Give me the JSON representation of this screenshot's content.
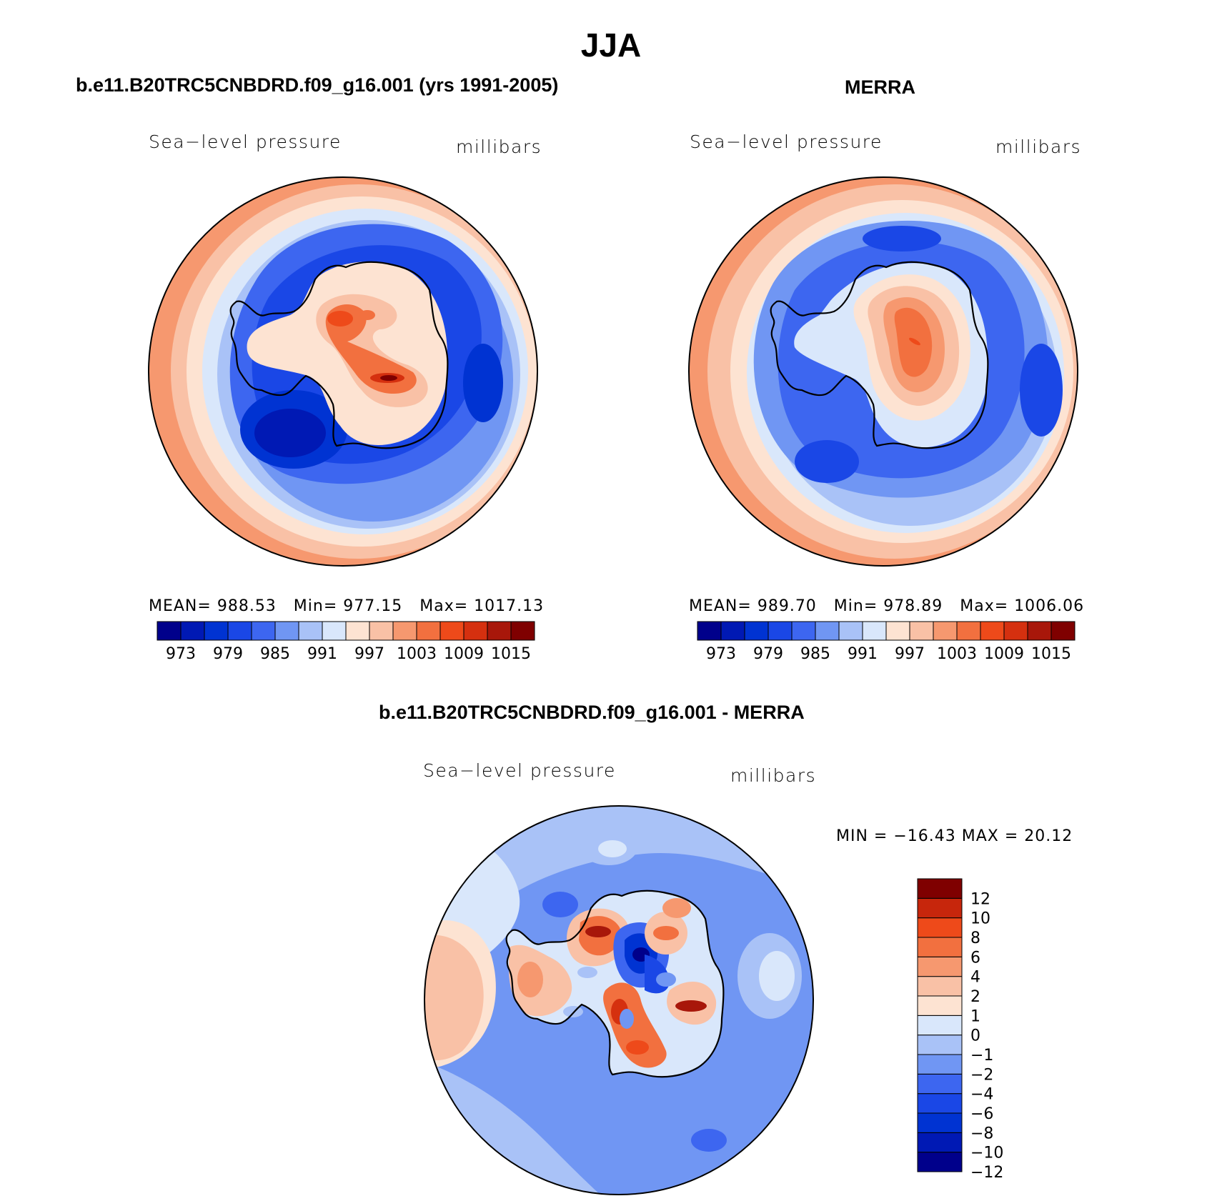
{
  "figure": {
    "title": "JJA",
    "colors": {
      "sequential": [
        "#00008b",
        "#0019b4",
        "#0033d2",
        "#1a47e6",
        "#3d66f0",
        "#7096f3",
        "#a9c2f7",
        "#d9e7fb",
        "#fde3d2",
        "#f9c1a6",
        "#f6986f",
        "#f2703f",
        "#ee4a1a",
        "#d5300f",
        "#a8170a",
        "#7f0000"
      ],
      "diverging": [
        "#00008b",
        "#0019b4",
        "#0033d2",
        "#1a47e6",
        "#3d66f0",
        "#7096f3",
        "#a9c2f7",
        "#d9e7fb",
        "#fde3d2",
        "#f9c1a6",
        "#f6986f",
        "#f2703f",
        "#ee4a1a",
        "#c7260c",
        "#7f0000"
      ],
      "coastline": "#000000",
      "frame": "#000000"
    }
  },
  "panels": {
    "model": {
      "title": "b.e11.B20TRC5CNBDRD.f09_g16.001 (yrs 1991-2005)",
      "variable": "Sea−level pressure",
      "units": "millibars",
      "stats": {
        "mean_label": "MEAN=",
        "mean": "988.53",
        "min_label": "Min=",
        "min": "977.15",
        "max_label": "Max=",
        "max": "1017.13"
      },
      "colorbar_labels": [
        "973",
        "979",
        "985",
        "991",
        "997",
        "1003",
        "1009",
        "1015"
      ]
    },
    "obs": {
      "title": "MERRA",
      "variable": "Sea−level pressure",
      "units": "millibars",
      "stats": {
        "mean_label": "MEAN=",
        "mean": "989.70",
        "min_label": "Min=",
        "min": "978.89",
        "max_label": "Max=",
        "max": "1006.06"
      },
      "colorbar_labels": [
        "973",
        "979",
        "985",
        "991",
        "997",
        "1003",
        "1009",
        "1015"
      ]
    },
    "diff": {
      "title": "b.e11.B20TRC5CNBDRD.f09_g16.001 - MERRA",
      "variable": "Sea−level pressure",
      "units": "millibars",
      "minmax": "MIN = −16.43 MAX =   20.12",
      "colorbar_labels": [
        "12",
        "10",
        "8",
        "6",
        "4",
        "2",
        "1",
        "0",
        "−1",
        "−2",
        "−4",
        "−6",
        "−8",
        "−10",
        "−12"
      ]
    }
  }
}
